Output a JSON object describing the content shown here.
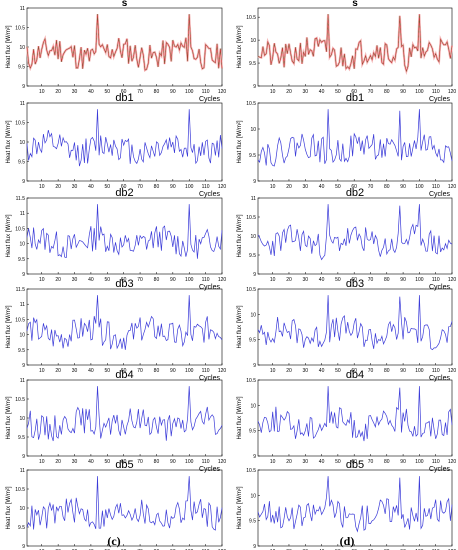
{
  "captions": [
    "(c)",
    "(d)"
  ],
  "colors": {
    "signal": "#c03030",
    "detail": "#3a3ad8",
    "axis": "#000000"
  },
  "chart_data": [
    {
      "type": "line",
      "title": "s",
      "xlabel": "Cycles",
      "ylabel": "Heat flux [W/m²]",
      "xlim": [
        1,
        120
      ],
      "ylim": [
        9,
        11
      ],
      "xticks": [
        10,
        20,
        30,
        40,
        50,
        60,
        70,
        80,
        90,
        100,
        110,
        120
      ],
      "yticks": [
        9,
        9.5,
        10,
        10.5,
        11
      ],
      "ytick_labels": [
        "9",
        "9.5",
        "10",
        "10.5",
        "11"
      ],
      "series": [
        {
          "style": "red-green",
          "seed": 11
        }
      ]
    },
    {
      "type": "line",
      "title": "db1",
      "xlabel": "Cycles",
      "ylabel": "Heat flux [W/m²]",
      "xlim": [
        1,
        120
      ],
      "ylim": [
        9,
        11
      ],
      "xticks": [
        10,
        20,
        30,
        40,
        50,
        60,
        70,
        80,
        90,
        100,
        110,
        120
      ],
      "yticks": [
        9,
        9.5,
        10,
        10.5,
        11
      ],
      "ytick_labels": [
        "9",
        "9.5",
        "10",
        "10.5",
        "11"
      ],
      "series": [
        {
          "style": "blue",
          "seed": 12
        }
      ]
    },
    {
      "type": "line",
      "title": "db2",
      "xlabel": "Cycles",
      "ylabel": "Heat flux [W/m²]",
      "xlim": [
        1,
        120
      ],
      "ylim": [
        9,
        11.5
      ],
      "xticks": [
        10,
        20,
        30,
        40,
        50,
        60,
        70,
        80,
        90,
        100,
        110,
        120
      ],
      "yticks": [
        9,
        9.5,
        10,
        10.5,
        11,
        11.5
      ],
      "ytick_labels": [
        "9",
        "9.5",
        "10",
        "10.5",
        "11",
        "11.5"
      ],
      "series": [
        {
          "style": "blue",
          "seed": 13
        }
      ]
    },
    {
      "type": "line",
      "title": "db3",
      "xlabel": "Cycles",
      "ylabel": "Heat flux [W/m²]",
      "xlim": [
        1,
        120
      ],
      "ylim": [
        9,
        11.5
      ],
      "xticks": [
        10,
        20,
        30,
        40,
        50,
        60,
        70,
        80,
        90,
        100,
        110,
        120
      ],
      "yticks": [
        9,
        9.5,
        10,
        10.5,
        11,
        11.5
      ],
      "ytick_labels": [
        "9",
        "9.5",
        "10",
        "10.5",
        "11",
        "11.5"
      ],
      "series": [
        {
          "style": "blue",
          "seed": 14
        }
      ]
    },
    {
      "type": "line",
      "title": "db4",
      "xlabel": "Cycles",
      "ylabel": "Heat flux [W/m²]",
      "xlim": [
        1,
        120
      ],
      "ylim": [
        9,
        11
      ],
      "xticks": [
        10,
        20,
        30,
        40,
        50,
        60,
        70,
        80,
        90,
        100,
        110,
        120
      ],
      "yticks": [
        9,
        9.5,
        10,
        10.5,
        11
      ],
      "ytick_labels": [
        "9",
        "9.5",
        "10",
        "10.5",
        "11"
      ],
      "series": [
        {
          "style": "blue",
          "seed": 15
        }
      ]
    },
    {
      "type": "line",
      "title": "db5",
      "xlabel": "Cycles",
      "ylabel": "Heat flux [W/m²]",
      "xlim": [
        1,
        120
      ],
      "ylim": [
        9,
        11
      ],
      "xticks": [
        10,
        20,
        30,
        40,
        50,
        60,
        70,
        80,
        90,
        100,
        110,
        120
      ],
      "yticks": [
        9,
        9.5,
        10,
        10.5,
        11
      ],
      "ytick_labels": [
        "9",
        "9.5",
        "10",
        "10.5",
        "11"
      ],
      "series": [
        {
          "style": "blue",
          "seed": 16
        }
      ]
    },
    {
      "type": "line",
      "title": "s",
      "xlabel": "Cycles",
      "ylabel": "Heat flux [W/m²]",
      "xlim": [
        1,
        120
      ],
      "ylim": [
        9,
        10.7
      ],
      "xticks": [
        10,
        20,
        30,
        40,
        50,
        60,
        70,
        80,
        90,
        100,
        110,
        120
      ],
      "yticks": [
        9,
        9.5,
        10,
        10.5
      ],
      "ytick_labels": [
        "9",
        "9.5",
        "10",
        "10.5"
      ],
      "series": [
        {
          "style": "red-green",
          "seed": 21
        }
      ]
    },
    {
      "type": "line",
      "title": "db1",
      "xlabel": "Cycles",
      "ylabel": "Heat flux [W/m²]",
      "xlim": [
        1,
        120
      ],
      "ylim": [
        9,
        10.5
      ],
      "xticks": [
        10,
        20,
        30,
        40,
        50,
        60,
        70,
        80,
        90,
        100,
        110,
        120
      ],
      "yticks": [
        9,
        9.5,
        10,
        10.5
      ],
      "ytick_labels": [
        "9",
        "9.5",
        "10",
        "10.5"
      ],
      "series": [
        {
          "style": "blue",
          "seed": 22
        }
      ]
    },
    {
      "type": "line",
      "title": "db2",
      "xlabel": "Cycles",
      "ylabel": "Heat flux [W/m²]",
      "xlim": [
        1,
        120
      ],
      "ylim": [
        9,
        11
      ],
      "xticks": [
        10,
        20,
        30,
        40,
        50,
        60,
        70,
        80,
        90,
        100,
        110,
        120
      ],
      "yticks": [
        9,
        9.5,
        10,
        10.5,
        11
      ],
      "ytick_labels": [
        "9",
        "9.5",
        "10",
        "10.5",
        "11"
      ],
      "series": [
        {
          "style": "blue",
          "seed": 23
        }
      ]
    },
    {
      "type": "line",
      "title": "db3",
      "xlabel": "Cycles",
      "ylabel": "Heat flux [W/m²]",
      "xlim": [
        1,
        120
      ],
      "ylim": [
        9,
        10.5
      ],
      "xticks": [
        10,
        20,
        30,
        40,
        50,
        60,
        70,
        80,
        90,
        100,
        110,
        120
      ],
      "yticks": [
        9,
        9.5,
        10,
        10.5
      ],
      "ytick_labels": [
        "9",
        "9.5",
        "10",
        "10.5"
      ],
      "series": [
        {
          "style": "blue",
          "seed": 24
        }
      ]
    },
    {
      "type": "line",
      "title": "db4",
      "xlabel": "Cycles",
      "ylabel": "Heat flux [W/m²]",
      "xlim": [
        1,
        120
      ],
      "ylim": [
        9,
        10.5
      ],
      "xticks": [
        10,
        20,
        30,
        40,
        50,
        60,
        70,
        80,
        90,
        100,
        110,
        120
      ],
      "yticks": [
        9,
        9.5,
        10,
        10.5
      ],
      "ytick_labels": [
        "9",
        "9.5",
        "10",
        "10.5"
      ],
      "series": [
        {
          "style": "blue",
          "seed": 25
        }
      ]
    },
    {
      "type": "line",
      "title": "db5",
      "xlabel": "Cycles",
      "ylabel": "Heat flux [W/m²]",
      "xlim": [
        1,
        120
      ],
      "ylim": [
        9,
        10.5
      ],
      "xticks": [
        10,
        20,
        30,
        40,
        50,
        60,
        70,
        80,
        90,
        100,
        110,
        120
      ],
      "yticks": [
        9,
        9.5,
        10,
        10.5
      ],
      "ytick_labels": [
        "9",
        "9.5",
        "10",
        "10.5"
      ],
      "series": [
        {
          "style": "blue",
          "seed": 26
        }
      ]
    }
  ]
}
